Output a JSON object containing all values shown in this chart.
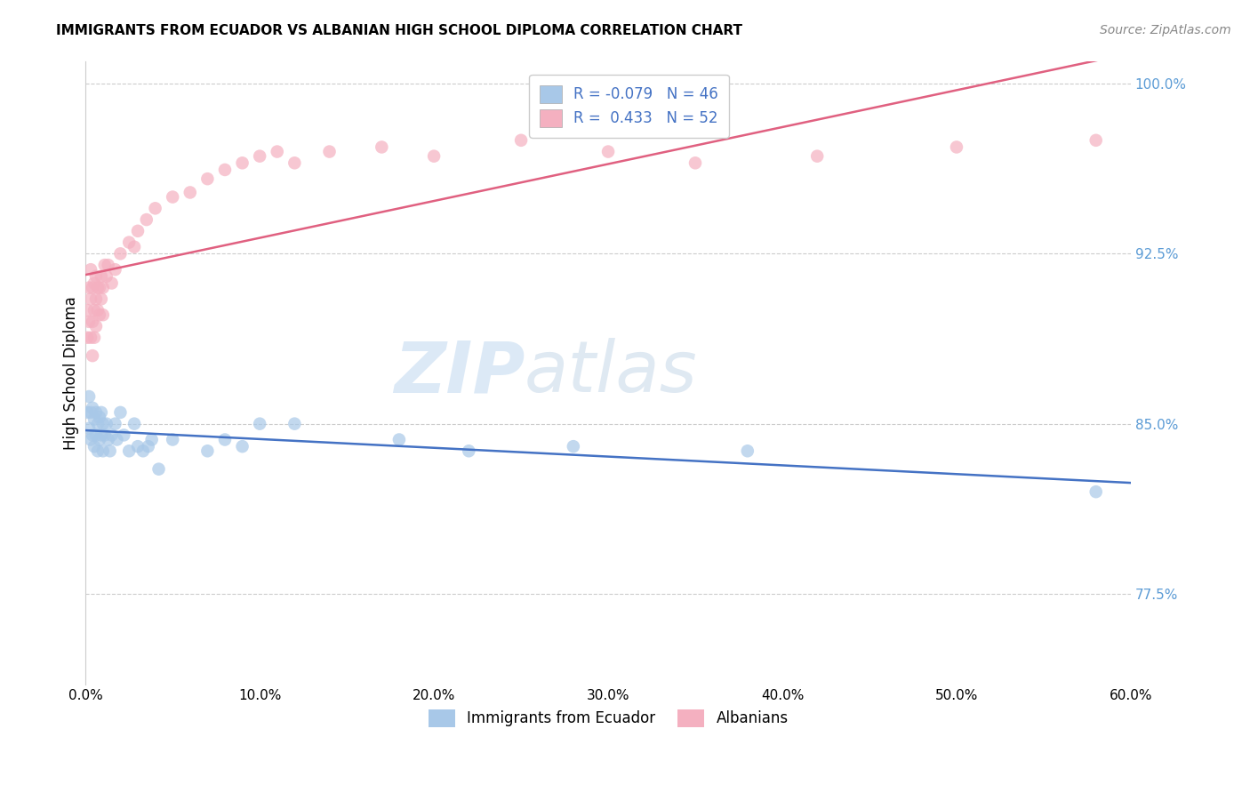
{
  "title": "IMMIGRANTS FROM ECUADOR VS ALBANIAN HIGH SCHOOL DIPLOMA CORRELATION CHART",
  "source": "Source: ZipAtlas.com",
  "ylabel": "High School Diploma",
  "watermark_zip": "ZIP",
  "watermark_atlas": "atlas",
  "legend_label1": "R = -0.079   N = 46",
  "legend_label2": "R =  0.433   N = 52",
  "color_ecuador": "#a8c8e8",
  "color_albanian": "#f4b0c0",
  "color_line_ecuador": "#4472c4",
  "color_line_albanian": "#e06080",
  "color_ytick": "#5b9bd5",
  "color_grid": "#cccccc",
  "ecuador_x": [
    0.001,
    0.002,
    0.002,
    0.003,
    0.003,
    0.004,
    0.004,
    0.005,
    0.005,
    0.006,
    0.006,
    0.007,
    0.007,
    0.008,
    0.008,
    0.009,
    0.009,
    0.01,
    0.01,
    0.011,
    0.012,
    0.013,
    0.014,
    0.015,
    0.017,
    0.018,
    0.02,
    0.022,
    0.025,
    0.028,
    0.03,
    0.033,
    0.036,
    0.038,
    0.042,
    0.05,
    0.07,
    0.08,
    0.09,
    0.1,
    0.12,
    0.18,
    0.22,
    0.28,
    0.38,
    0.58
  ],
  "ecuador_y": [
    0.855,
    0.862,
    0.848,
    0.855,
    0.843,
    0.857,
    0.845,
    0.852,
    0.84,
    0.855,
    0.845,
    0.85,
    0.838,
    0.853,
    0.843,
    0.855,
    0.845,
    0.85,
    0.838,
    0.845,
    0.85,
    0.843,
    0.838,
    0.845,
    0.85,
    0.843,
    0.855,
    0.845,
    0.838,
    0.85,
    0.84,
    0.838,
    0.84,
    0.843,
    0.83,
    0.843,
    0.838,
    0.843,
    0.84,
    0.85,
    0.85,
    0.843,
    0.838,
    0.84,
    0.838,
    0.82
  ],
  "albanian_x": [
    0.001,
    0.001,
    0.002,
    0.002,
    0.003,
    0.003,
    0.003,
    0.004,
    0.004,
    0.004,
    0.005,
    0.005,
    0.005,
    0.006,
    0.006,
    0.006,
    0.007,
    0.007,
    0.008,
    0.008,
    0.009,
    0.009,
    0.01,
    0.01,
    0.011,
    0.012,
    0.013,
    0.015,
    0.017,
    0.02,
    0.025,
    0.028,
    0.03,
    0.035,
    0.04,
    0.05,
    0.06,
    0.07,
    0.08,
    0.09,
    0.1,
    0.11,
    0.12,
    0.14,
    0.17,
    0.2,
    0.25,
    0.3,
    0.35,
    0.42,
    0.5,
    0.58
  ],
  "albanian_y": [
    0.9,
    0.888,
    0.91,
    0.895,
    0.905,
    0.918,
    0.888,
    0.91,
    0.895,
    0.88,
    0.912,
    0.9,
    0.888,
    0.915,
    0.905,
    0.893,
    0.91,
    0.9,
    0.91,
    0.898,
    0.915,
    0.905,
    0.91,
    0.898,
    0.92,
    0.915,
    0.92,
    0.912,
    0.918,
    0.925,
    0.93,
    0.928,
    0.935,
    0.94,
    0.945,
    0.95,
    0.952,
    0.958,
    0.962,
    0.965,
    0.968,
    0.97,
    0.965,
    0.97,
    0.972,
    0.968,
    0.975,
    0.97,
    0.965,
    0.968,
    0.972,
    0.975
  ],
  "xlim": [
    0.0,
    0.6
  ],
  "ylim": [
    0.735,
    1.01
  ],
  "ytick_vals": [
    0.775,
    0.85,
    0.925,
    1.0
  ],
  "ytick_labels": [
    "77.5%",
    "85.0%",
    "92.5%",
    "100.0%"
  ],
  "xtick_vals": [
    0.0,
    0.1,
    0.2,
    0.3,
    0.4,
    0.5,
    0.6
  ],
  "xtick_labels": [
    "0.0%",
    "10.0%",
    "20.0%",
    "30.0%",
    "40.0%",
    "50.0%",
    "60.0%"
  ],
  "ecuador_line_x": [
    0.0,
    0.6
  ],
  "albanian_line_x": [
    0.0,
    0.6
  ]
}
